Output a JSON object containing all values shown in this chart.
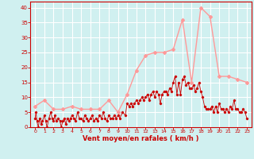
{
  "background_color": "#d0f0f0",
  "grid_color": "#b0e0e0",
  "xlabel": "Vent moyen/en rafales ( km/h )",
  "xlabel_color": "#cc0000",
  "tick_color": "#cc0000",
  "ylim": [
    0,
    42
  ],
  "yticks": [
    0,
    5,
    10,
    15,
    20,
    25,
    30,
    35,
    40
  ],
  "xticks": [
    0,
    1,
    2,
    3,
    4,
    5,
    6,
    7,
    8,
    9,
    10,
    11,
    12,
    13,
    14,
    15,
    16,
    17,
    18,
    19,
    20,
    21,
    22,
    23
  ],
  "smooth_color": "#ff9999",
  "jagged_color": "#cc0000",
  "smooth_data": [
    7,
    9,
    6,
    6,
    7,
    6,
    6,
    6,
    9,
    5,
    11,
    19,
    24,
    25,
    25,
    26,
    36,
    15,
    40,
    37,
    17,
    17,
    16,
    15
  ],
  "jagged_x": [
    0.0,
    0.1,
    0.2,
    0.35,
    0.5,
    0.65,
    0.8,
    1.0,
    1.15,
    1.3,
    1.5,
    1.7,
    1.85,
    2.0,
    2.15,
    2.3,
    2.5,
    2.7,
    2.85,
    3.0,
    3.15,
    3.35,
    3.5,
    3.7,
    3.85,
    4.0,
    4.2,
    4.4,
    4.6,
    4.8,
    5.0,
    5.2,
    5.4,
    5.6,
    5.8,
    6.0,
    6.2,
    6.4,
    6.6,
    6.8,
    7.0,
    7.2,
    7.4,
    7.6,
    7.8,
    8.0,
    8.2,
    8.4,
    8.6,
    8.8,
    9.0,
    9.2,
    9.5,
    9.8,
    10.0,
    10.2,
    10.4,
    10.6,
    10.8,
    11.0,
    11.2,
    11.4,
    11.6,
    11.8,
    12.0,
    12.2,
    12.4,
    12.6,
    12.8,
    13.0,
    13.2,
    13.4,
    13.6,
    13.8,
    14.0,
    14.2,
    14.4,
    14.6,
    14.8,
    15.0,
    15.2,
    15.4,
    15.6,
    15.8,
    16.0,
    16.2,
    16.4,
    16.6,
    16.8,
    17.0,
    17.2,
    17.4,
    17.6,
    17.8,
    18.0,
    18.2,
    18.4,
    18.6,
    18.8,
    19.0,
    19.2,
    19.4,
    19.6,
    19.8,
    20.0,
    20.2,
    20.4,
    20.6,
    20.8,
    21.0,
    21.2,
    21.4,
    21.6,
    21.8,
    22.0,
    22.2,
    22.4,
    22.6,
    22.8,
    23.0
  ],
  "jagged_y": [
    3,
    5,
    2,
    0,
    3,
    1,
    2,
    4,
    2,
    0,
    3,
    5,
    3,
    2,
    4,
    2,
    3,
    2,
    0,
    2,
    3,
    1,
    3,
    2,
    3,
    4,
    3,
    2,
    5,
    3,
    3,
    2,
    4,
    3,
    2,
    3,
    4,
    2,
    3,
    2,
    4,
    3,
    5,
    3,
    2,
    4,
    3,
    3,
    4,
    3,
    4,
    3,
    5,
    4,
    8,
    7,
    8,
    7,
    8,
    9,
    8,
    9,
    10,
    9,
    10,
    11,
    9,
    11,
    12,
    10,
    12,
    11,
    8,
    11,
    12,
    12,
    11,
    13,
    12,
    15,
    17,
    11,
    15,
    11,
    16,
    17,
    14,
    15,
    13,
    13,
    14,
    12,
    13,
    15,
    12,
    10,
    7,
    6,
    6,
    6,
    7,
    5,
    7,
    5,
    8,
    6,
    6,
    5,
    6,
    5,
    7,
    6,
    9,
    6,
    6,
    5,
    5,
    6,
    5,
    3
  ]
}
